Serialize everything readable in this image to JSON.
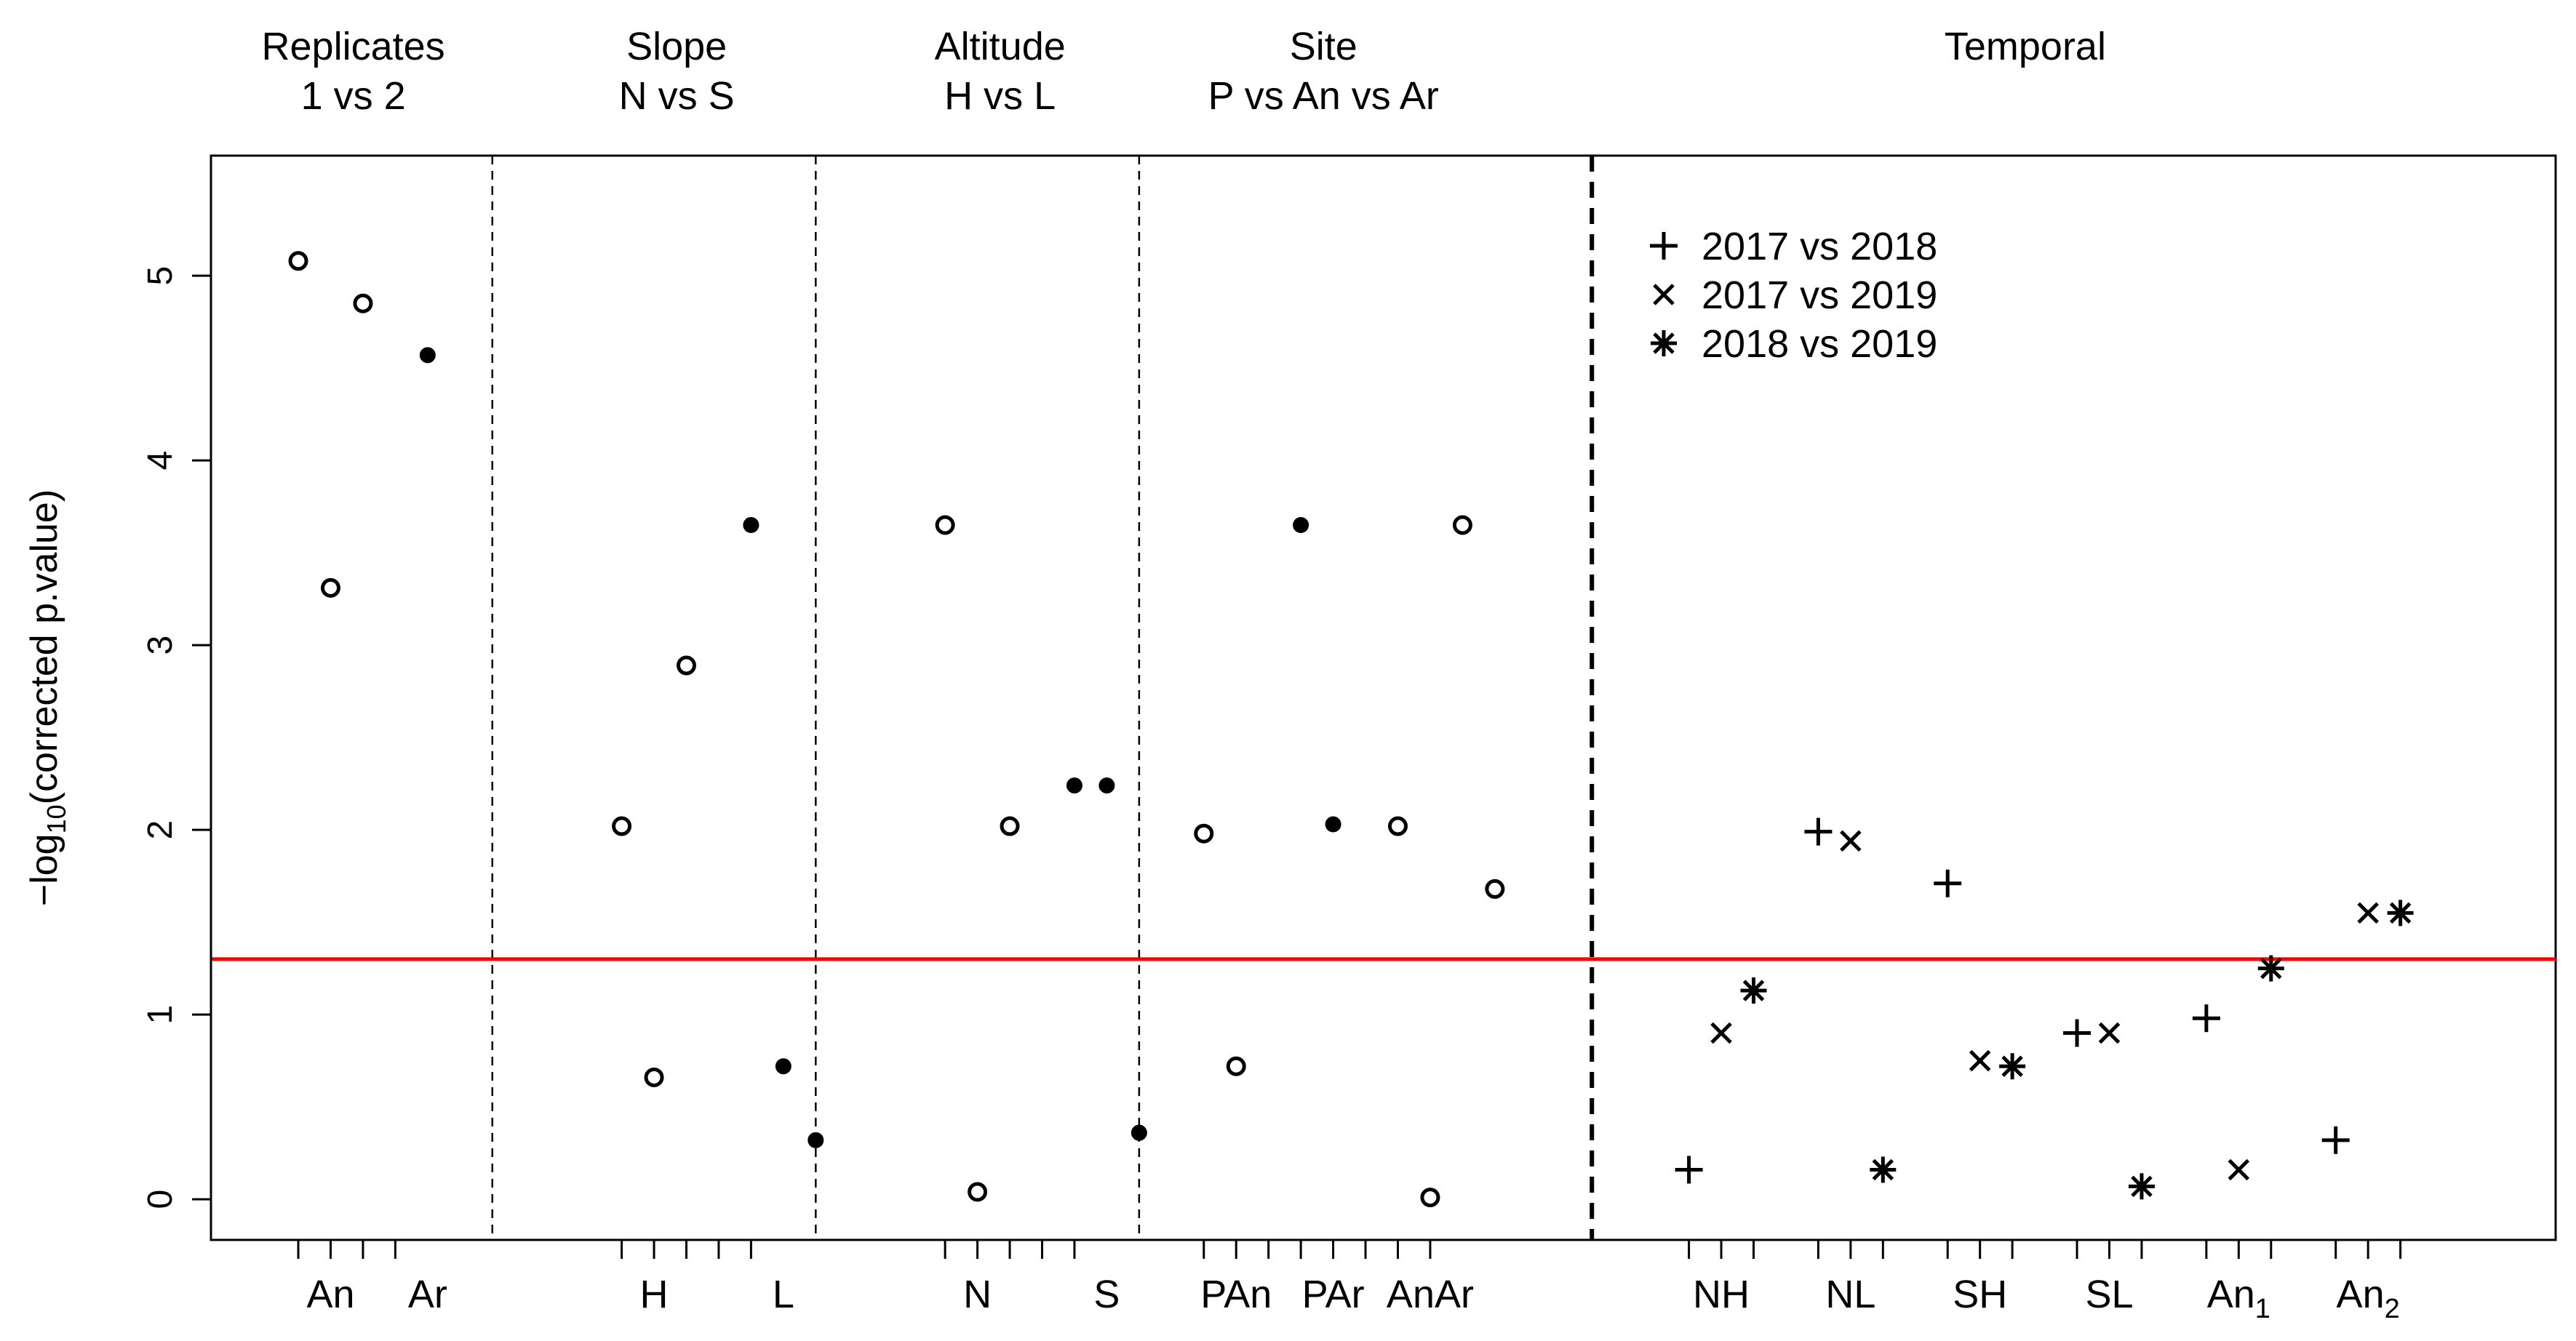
{
  "chart_data": {
    "type": "scatter",
    "ylabel_prefix": "−log",
    "ylabel_sub": "10",
    "ylabel_suffix": "(corrected p.value)",
    "yticks": [
      0,
      1,
      2,
      3,
      4,
      5
    ],
    "ylim": [
      -0.22,
      5.65
    ],
    "xlim": [
      0.35,
      36.6
    ],
    "threshold": 1.3,
    "threshold_color": "#ff0000",
    "panels": [
      {
        "title_line1": "Replicates",
        "title_line2": "1 vs 2",
        "center": 2.55
      },
      {
        "title_line1": "Slope",
        "title_line2": "N vs S",
        "center": 7.55
      },
      {
        "title_line1": "Altitude",
        "title_line2": "H vs L",
        "center": 12.55
      },
      {
        "title_line1": "Site",
        "title_line2": "P vs An vs Ar",
        "center": 17.55
      },
      {
        "title_line1": "Temporal",
        "title_line2": "",
        "center": 28.4
      }
    ],
    "separators": [
      {
        "x": 4.7,
        "style": "thin"
      },
      {
        "x": 9.7,
        "style": "thin"
      },
      {
        "x": 14.7,
        "style": "thin"
      },
      {
        "x": 21.7,
        "style": "thick"
      }
    ],
    "tick_positions": [
      1.7,
      2.2,
      2.7,
      3.2,
      6.7,
      7.2,
      7.7,
      8.2,
      8.7,
      11.7,
      12.2,
      12.7,
      13.2,
      13.7,
      15.7,
      16.2,
      16.7,
      17.2,
      17.7,
      18.2,
      18.7,
      19.2,
      23.2,
      23.7,
      24.2,
      25.2,
      25.7,
      26.2,
      27.2,
      27.7,
      28.2,
      29.2,
      29.7,
      30.2,
      31.2,
      31.7,
      32.2,
      33.2,
      33.7,
      34.2
    ],
    "group_labels": [
      {
        "label": "An",
        "sub": "",
        "x": 2.2
      },
      {
        "label": "Ar",
        "sub": "",
        "x": 3.7
      },
      {
        "label": "H",
        "sub": "",
        "x": 7.2
      },
      {
        "label": "L",
        "sub": "",
        "x": 9.2
      },
      {
        "label": "N",
        "sub": "",
        "x": 12.2
      },
      {
        "label": "S",
        "sub": "",
        "x": 14.2
      },
      {
        "label": "PAn",
        "sub": "",
        "x": 16.2
      },
      {
        "label": "PAr",
        "sub": "",
        "x": 17.7
      },
      {
        "label": "AnAr",
        "sub": "",
        "x": 19.2
      },
      {
        "label": "NH",
        "sub": "",
        "x": 23.7
      },
      {
        "label": "NL",
        "sub": "",
        "x": 25.7
      },
      {
        "label": "SH",
        "sub": "",
        "x": 27.7
      },
      {
        "label": "SL",
        "sub": "",
        "x": 29.7
      },
      {
        "label": "An",
        "sub": "1",
        "x": 31.7
      },
      {
        "label": "An",
        "sub": "2",
        "x": 33.7
      }
    ],
    "points": [
      {
        "x": 1.7,
        "y": 5.08,
        "marker": "open"
      },
      {
        "x": 2.2,
        "y": 3.31,
        "marker": "open"
      },
      {
        "x": 2.7,
        "y": 4.85,
        "marker": "open"
      },
      {
        "x": 3.7,
        "y": 4.57,
        "marker": "filled"
      },
      {
        "x": 6.7,
        "y": 2.02,
        "marker": "open"
      },
      {
        "x": 7.2,
        "y": 0.66,
        "marker": "open"
      },
      {
        "x": 7.7,
        "y": 2.89,
        "marker": "open"
      },
      {
        "x": 8.7,
        "y": 3.65,
        "marker": "filled"
      },
      {
        "x": 9.2,
        "y": 0.72,
        "marker": "filled"
      },
      {
        "x": 9.7,
        "y": 0.32,
        "marker": "filled"
      },
      {
        "x": 11.7,
        "y": 3.65,
        "marker": "open"
      },
      {
        "x": 12.2,
        "y": 0.04,
        "marker": "open"
      },
      {
        "x": 12.7,
        "y": 2.02,
        "marker": "open"
      },
      {
        "x": 13.7,
        "y": 2.24,
        "marker": "filled"
      },
      {
        "x": 14.2,
        "y": 2.24,
        "marker": "filled"
      },
      {
        "x": 14.7,
        "y": 0.36,
        "marker": "filled"
      },
      {
        "x": 15.7,
        "y": 1.98,
        "marker": "open"
      },
      {
        "x": 16.2,
        "y": 0.72,
        "marker": "open"
      },
      {
        "x": 17.2,
        "y": 3.65,
        "marker": "filled"
      },
      {
        "x": 17.7,
        "y": 2.03,
        "marker": "filled"
      },
      {
        "x": 18.7,
        "y": 2.02,
        "marker": "open"
      },
      {
        "x": 19.2,
        "y": 0.01,
        "marker": "open"
      },
      {
        "x": 19.7,
        "y": 3.65,
        "marker": "open"
      },
      {
        "x": 20.2,
        "y": 1.68,
        "marker": "open"
      },
      {
        "x": 23.2,
        "y": 0.16,
        "marker": "plus"
      },
      {
        "x": 23.7,
        "y": 0.9,
        "marker": "cross"
      },
      {
        "x": 24.2,
        "y": 1.13,
        "marker": "star"
      },
      {
        "x": 25.2,
        "y": 1.99,
        "marker": "plus"
      },
      {
        "x": 25.7,
        "y": 1.94,
        "marker": "cross"
      },
      {
        "x": 26.2,
        "y": 0.16,
        "marker": "star"
      },
      {
        "x": 27.2,
        "y": 1.71,
        "marker": "plus"
      },
      {
        "x": 27.7,
        "y": 0.75,
        "marker": "cross"
      },
      {
        "x": 28.2,
        "y": 0.72,
        "marker": "star"
      },
      {
        "x": 29.2,
        "y": 0.9,
        "marker": "plus"
      },
      {
        "x": 29.7,
        "y": 0.9,
        "marker": "cross"
      },
      {
        "x": 30.2,
        "y": 0.07,
        "marker": "star"
      },
      {
        "x": 31.2,
        "y": 0.98,
        "marker": "plus"
      },
      {
        "x": 31.7,
        "y": 0.16,
        "marker": "cross"
      },
      {
        "x": 32.2,
        "y": 1.25,
        "marker": "star"
      },
      {
        "x": 33.2,
        "y": 0.32,
        "marker": "plus"
      },
      {
        "x": 33.7,
        "y": 1.55,
        "marker": "cross"
      },
      {
        "x": 34.2,
        "y": 1.55,
        "marker": "star"
      }
    ],
    "legend": {
      "position": "top-center of temporal panel",
      "entries": [
        {
          "label": "2017 vs 2018",
          "marker": "plus"
        },
        {
          "label": "2017 vs 2019",
          "marker": "cross"
        },
        {
          "label": "2018 vs 2019",
          "marker": "star"
        }
      ]
    }
  }
}
